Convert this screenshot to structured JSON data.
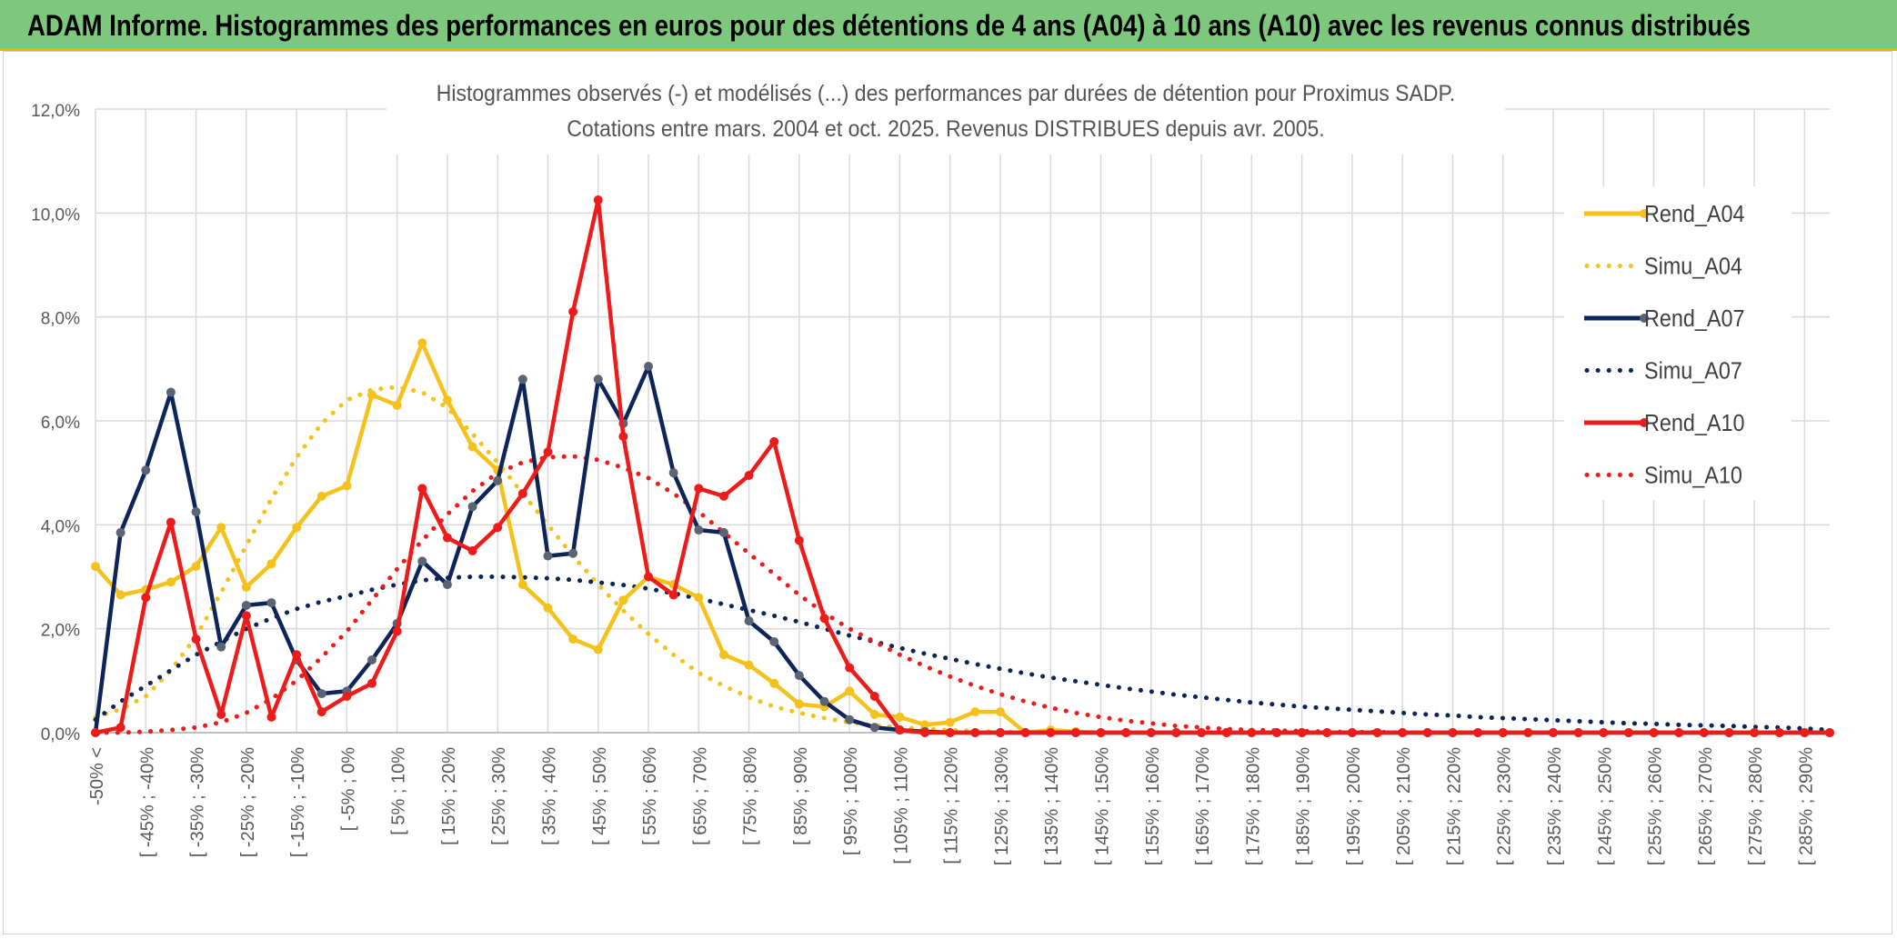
{
  "banner": {
    "title": "ADAM Informe. Histogrammes des performances en euros pour des détentions de 4 ans (A04) à 10 ans (A10) avec les revenus connus distribués"
  },
  "chart_data": {
    "type": "line",
    "title": "Histogrammes observés (-) et modélisés (...) des performances par durées de détention pour Proximus SADP.",
    "subtitle": "Cotations entre mars. 2004 et oct. 2025. Revenus DISTRIBUES depuis avr. 2005.",
    "ylim": [
      0,
      12
    ],
    "y_ticks": [
      "0,0%",
      "2,0%",
      "4,0%",
      "6,0%",
      "8,0%",
      "10,0%",
      "12,0%"
    ],
    "x_labels": [
      "-50% <",
      "[ -45% ; -40%",
      "[ -35% ; -30%",
      "[ -25% ; -20%",
      "[ -15% ; -10%",
      "[ -5% ; 0%",
      "[ 5% ; 10%",
      "[ 15% ; 20%",
      "[ 25% ; 30%",
      "[ 35% ; 40%",
      "[ 45% ; 50%",
      "[ 55% ; 60%",
      "[ 65% ; 70%",
      "[ 75% ; 80%",
      "[ 85% ; 90%",
      "[ 95% ; 100%",
      "[ 105% ; 110%",
      "[ 115% ; 120%",
      "[ 125% ; 130%",
      "[ 135% ; 140%",
      "[ 145% ; 150%",
      "[ 155% ; 160%",
      "[ 165% ; 170%",
      "[ 175% ; 180%",
      "[ 185% ; 190%",
      "[ 195% ; 200%",
      "[ 205% ; 210%",
      "[ 215% ; 220%",
      "[ 225% ; 230%",
      "[ 235% ; 240%",
      "[ 245% ; 250%",
      "[ 255% ; 260%",
      "[ 265% ; 270%",
      "[ 275% ; 280%",
      "[ 285% ; 290%"
    ],
    "num_points": 70,
    "series": [
      {
        "name": "Rend_A04",
        "style": "solid",
        "color": "#f5c21b",
        "values": [
          3.2,
          2.65,
          2.75,
          2.9,
          3.2,
          3.95,
          2.8,
          3.25,
          3.95,
          4.55,
          4.75,
          6.5,
          6.3,
          7.5,
          6.4,
          5.5,
          5.05,
          2.85,
          2.4,
          1.8,
          1.6,
          2.55,
          3.0,
          2.85,
          2.6,
          1.5,
          1.3,
          0.95,
          0.55,
          0.5,
          0.8,
          0.35,
          0.3,
          0.15,
          0.2,
          0.4,
          0.4,
          0.0,
          0.05,
          0.02,
          0,
          0,
          0,
          0,
          0,
          0,
          0,
          0,
          0,
          0,
          0,
          0,
          0,
          0,
          0,
          0,
          0,
          0,
          0,
          0,
          0,
          0,
          0,
          0,
          0,
          0,
          0,
          0,
          0,
          0
        ]
      },
      {
        "name": "Simu_A04",
        "style": "dotted",
        "color": "#f5c21b",
        "values": [
          0.3,
          0.45,
          0.7,
          1.2,
          1.85,
          2.7,
          3.6,
          4.5,
          5.3,
          5.95,
          6.4,
          6.6,
          6.65,
          6.55,
          6.25,
          5.75,
          5.2,
          4.6,
          4.0,
          3.4,
          2.85,
          2.35,
          1.9,
          1.5,
          1.15,
          0.9,
          0.68,
          0.5,
          0.38,
          0.28,
          0.2,
          0.14,
          0.1,
          0.07,
          0.05,
          0.03,
          0.02,
          0.01,
          0.01,
          0,
          0,
          0,
          0,
          0,
          0,
          0,
          0,
          0,
          0,
          0,
          0,
          0,
          0,
          0,
          0,
          0,
          0,
          0,
          0,
          0,
          0,
          0,
          0,
          0,
          0,
          0,
          0,
          0,
          0,
          0
        ]
      },
      {
        "name": "Rend_A07",
        "style": "solid",
        "color": "#0d2559",
        "values": [
          0.0,
          3.85,
          5.05,
          6.55,
          4.25,
          1.65,
          2.45,
          2.5,
          1.4,
          0.75,
          0.8,
          1.4,
          2.1,
          3.3,
          2.85,
          4.35,
          4.85,
          6.8,
          3.4,
          3.45,
          6.8,
          5.95,
          7.05,
          5.0,
          3.9,
          3.85,
          2.15,
          1.75,
          1.1,
          0.6,
          0.25,
          0.1,
          0.05,
          0.02,
          0,
          0,
          0,
          0,
          0,
          0,
          0,
          0,
          0,
          0,
          0,
          0,
          0,
          0,
          0,
          0,
          0,
          0,
          0,
          0,
          0,
          0,
          0,
          0,
          0,
          0,
          0,
          0,
          0,
          0,
          0,
          0,
          0,
          0,
          0,
          0
        ]
      },
      {
        "name": "Simu_A07",
        "style": "dotted",
        "color": "#0d2559",
        "values": [
          0.25,
          0.6,
          0.9,
          1.2,
          1.5,
          1.75,
          2.0,
          2.2,
          2.38,
          2.52,
          2.63,
          2.75,
          2.85,
          2.93,
          2.98,
          3.0,
          3.0,
          2.99,
          2.97,
          2.94,
          2.89,
          2.84,
          2.77,
          2.68,
          2.58,
          2.47,
          2.36,
          2.25,
          2.13,
          2.0,
          1.87,
          1.75,
          1.63,
          1.52,
          1.42,
          1.32,
          1.23,
          1.14,
          1.06,
          0.99,
          0.92,
          0.85,
          0.79,
          0.73,
          0.68,
          0.63,
          0.58,
          0.54,
          0.5,
          0.47,
          0.44,
          0.41,
          0.38,
          0.35,
          0.33,
          0.3,
          0.28,
          0.26,
          0.24,
          0.22,
          0.2,
          0.18,
          0.17,
          0.15,
          0.14,
          0.13,
          0.11,
          0.1,
          0.08,
          0.05
        ]
      },
      {
        "name": "Rend_A10",
        "style": "solid",
        "color": "#ee1b1b",
        "values": [
          0.0,
          0.1,
          2.6,
          4.05,
          1.8,
          0.35,
          2.25,
          0.3,
          1.5,
          0.4,
          0.7,
          0.95,
          1.95,
          4.7,
          3.75,
          3.5,
          3.95,
          4.6,
          5.4,
          8.1,
          10.25,
          5.7,
          3.0,
          2.65,
          4.7,
          4.55,
          4.95,
          5.6,
          3.7,
          2.2,
          1.25,
          0.7,
          0.05,
          0,
          0,
          0,
          0,
          0,
          0,
          0,
          0,
          0,
          0,
          0,
          0,
          0,
          0,
          0,
          0,
          0,
          0,
          0,
          0,
          0,
          0,
          0,
          0,
          0,
          0,
          0,
          0,
          0,
          0,
          0,
          0,
          0,
          0,
          0,
          0,
          0
        ]
      },
      {
        "name": "Simu_A10",
        "style": "dotted",
        "color": "#ee1b1b",
        "values": [
          0.0,
          0.0,
          0.02,
          0.05,
          0.1,
          0.2,
          0.38,
          0.65,
          1.0,
          1.45,
          1.95,
          2.55,
          3.15,
          3.7,
          4.2,
          4.65,
          5.0,
          5.2,
          5.3,
          5.32,
          5.25,
          5.1,
          4.9,
          4.6,
          4.25,
          3.85,
          3.45,
          3.05,
          2.65,
          2.3,
          2.0,
          1.75,
          1.5,
          1.28,
          1.08,
          0.9,
          0.74,
          0.6,
          0.48,
          0.38,
          0.3,
          0.23,
          0.18,
          0.13,
          0.1,
          0.07,
          0.05,
          0.04,
          0.03,
          0.02,
          0.01,
          0.01,
          0,
          0,
          0,
          0,
          0,
          0,
          0,
          0,
          0,
          0,
          0,
          0,
          0,
          0,
          0,
          0,
          0,
          0
        ]
      }
    ]
  }
}
